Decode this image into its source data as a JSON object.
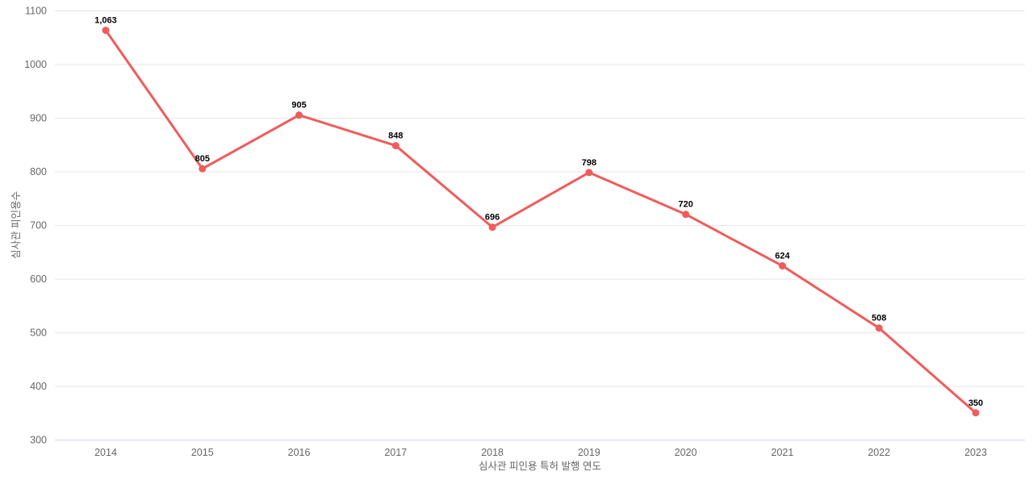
{
  "chart_data": {
    "type": "line",
    "title": "",
    "xlabel": "심사관 피인용 특허 발행 연도",
    "ylabel": "심사관 피인용수",
    "categories": [
      "2014",
      "2015",
      "2016",
      "2017",
      "2018",
      "2019",
      "2020",
      "2021",
      "2022",
      "2023"
    ],
    "values": [
      1063,
      805,
      905,
      848,
      696,
      798,
      720,
      624,
      508,
      350
    ],
    "value_labels": [
      "1,063",
      "805",
      "905",
      "848",
      "696",
      "798",
      "720",
      "624",
      "508",
      "350"
    ],
    "y_ticks": [
      300,
      400,
      500,
      600,
      700,
      800,
      900,
      1000,
      1100
    ],
    "ylim": [
      300,
      1100
    ],
    "grid": true,
    "legend": "none",
    "colors": {
      "series": "#f15b5b",
      "grid_line": "#e6e6e6",
      "axis_line": "#ccd6eb",
      "tick_label": "#666666",
      "axis_title": "#666666",
      "data_label": "#000000",
      "background": "#ffffff"
    }
  }
}
